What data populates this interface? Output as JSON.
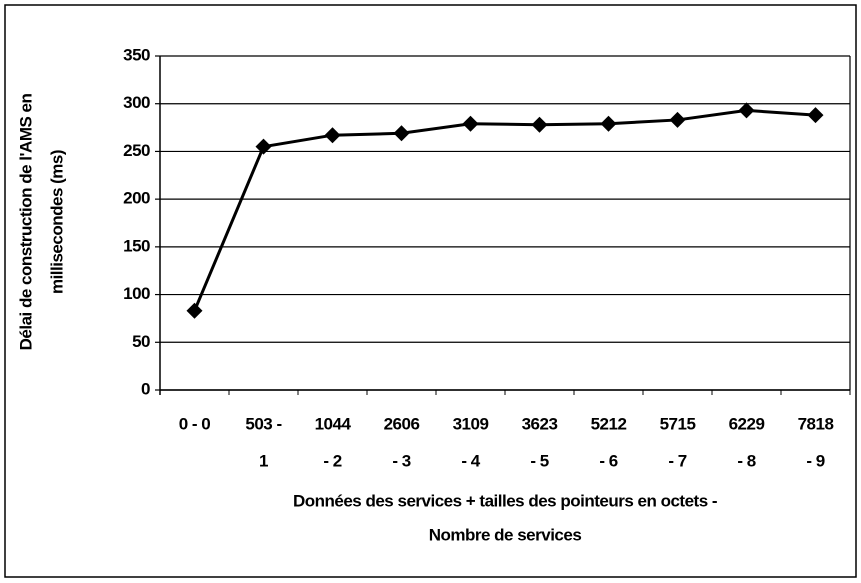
{
  "chart_data": {
    "type": "line",
    "y_label": [
      "Délai de construction de l'AMS en",
      "millisecondes (ms)"
    ],
    "x_label": [
      "Données des services + tailles des pointeurs  en octets -",
      "Nombre de services"
    ],
    "categories": [
      [
        "0 - 0"
      ],
      [
        "503 -",
        "1"
      ],
      [
        "1044",
        "- 2"
      ],
      [
        "2606",
        "- 3"
      ],
      [
        "3109",
        "- 4"
      ],
      [
        "3623",
        "- 5"
      ],
      [
        "5212",
        "- 6"
      ],
      [
        "5715",
        "- 7"
      ],
      [
        "6229",
        "- 8"
      ],
      [
        "7818",
        "- 9"
      ]
    ],
    "values": [
      83,
      255,
      267,
      269,
      279,
      278,
      279,
      283,
      293,
      288
    ],
    "color": "#000000",
    "ylim": [
      0,
      350
    ],
    "yticks": [
      0,
      50,
      100,
      150,
      200,
      250,
      300,
      350
    ],
    "grid": true
  }
}
